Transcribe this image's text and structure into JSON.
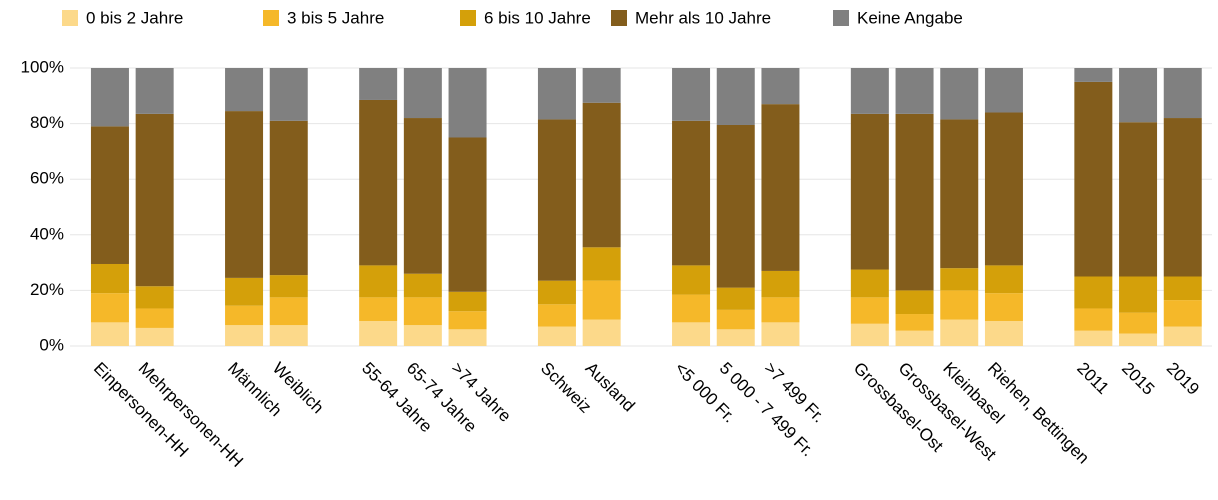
{
  "chart_data": {
    "type": "stacked_bar",
    "categories": [
      "Einpersonen-HH",
      "Mehrpersonen-HH",
      null,
      "Männlich",
      "Weiblich",
      null,
      "55-64 Jahre",
      "65-74 Jahre",
      ">74 Jahre",
      null,
      "Schweiz",
      "Ausland",
      null,
      "<5 000 Fr.",
      "5 000 - 7 499 Fr.",
      ">7 499 Fr.",
      null,
      "Grossbasel-Ost",
      "Grossbasel-West",
      "Kleinbasel",
      "Riehen, Bettingen",
      null,
      "2011",
      "2015",
      "2019"
    ],
    "series": [
      {
        "name": "0 bis 2 Jahre",
        "color": "#fcd98a",
        "values": [
          8.5,
          6.5,
          null,
          7.5,
          7.5,
          null,
          9,
          7.5,
          6,
          null,
          7,
          9.5,
          null,
          8.5,
          6,
          8.5,
          null,
          8,
          5.5,
          9.5,
          9,
          null,
          5.5,
          4.5,
          7
        ]
      },
      {
        "name": "3 bis 5 Jahre",
        "color": "#f5b829",
        "values": [
          10.5,
          7,
          null,
          7,
          10,
          null,
          8.5,
          10,
          6.5,
          null,
          8,
          14,
          null,
          10,
          7,
          9,
          null,
          9.5,
          6,
          10.5,
          10,
          null,
          8,
          7.5,
          9.5
        ]
      },
      {
        "name": "6 bis 10 Jahre",
        "color": "#d4a00a",
        "values": [
          10.5,
          8,
          null,
          10,
          8,
          null,
          11.5,
          8.5,
          7,
          null,
          8.5,
          12,
          null,
          10.5,
          8,
          9.5,
          null,
          10,
          8.5,
          8,
          10,
          null,
          11.5,
          13,
          8.5
        ]
      },
      {
        "name": "Mehr als 10 Jahre",
        "color": "#835d1c",
        "values": [
          49.5,
          62,
          null,
          60,
          55.5,
          null,
          59.5,
          56,
          55.5,
          null,
          58,
          52,
          null,
          52,
          58.5,
          60,
          null,
          56,
          63.5,
          53.5,
          55,
          null,
          70,
          55.5,
          57
        ]
      },
      {
        "name": "Keine Angabe",
        "color": "#808080",
        "values": [
          21,
          16.5,
          null,
          15.5,
          19,
          null,
          11.5,
          18,
          25,
          null,
          18.5,
          12.5,
          null,
          19,
          20.5,
          13,
          null,
          16.5,
          16.5,
          18.5,
          16,
          null,
          5,
          19.5,
          18
        ]
      }
    ],
    "ylim": [
      0,
      100
    ],
    "yticks": [
      {
        "value": 0,
        "label": "0%"
      },
      {
        "value": 20,
        "label": "20%"
      },
      {
        "value": 40,
        "label": "40%"
      },
      {
        "value": 60,
        "label": "60%"
      },
      {
        "value": 80,
        "label": "80%"
      },
      {
        "value": 100,
        "label": "100%"
      }
    ],
    "grid": true,
    "legend": "top"
  }
}
